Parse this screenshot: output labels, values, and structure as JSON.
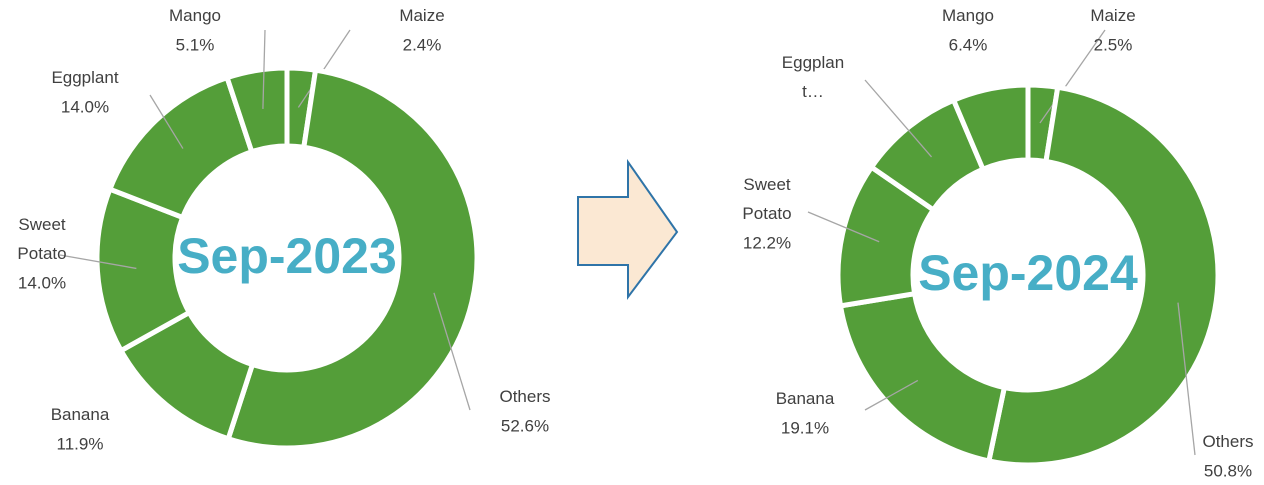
{
  "chart_data": [
    {
      "type": "donut",
      "title": "Sep-2023",
      "color": "#549e39",
      "title_color": "#47aec6",
      "categories": [
        "Maize",
        "Others",
        "Banana",
        "Sweet Potato",
        "Eggplant",
        "Mango"
      ],
      "values": [
        2.4,
        52.6,
        11.9,
        14.0,
        14.0,
        5.1
      ],
      "value_labels": [
        "2.4%",
        "52.6%",
        "11.9%",
        "14.0%",
        "14.0%",
        "5.1%"
      ]
    },
    {
      "type": "donut",
      "title": "Sep-2024",
      "color": "#549e39",
      "title_color": "#47aec6",
      "categories": [
        "Maize",
        "Others",
        "Banana",
        "Sweet Potato",
        "Eggplan t…",
        "Mango"
      ],
      "values": [
        2.5,
        50.8,
        19.1,
        12.2,
        9.0,
        6.4
      ],
      "value_labels": [
        "2.5%",
        "50.8%",
        "19.1%",
        "12.2%",
        null,
        "6.4%"
      ]
    }
  ]
}
